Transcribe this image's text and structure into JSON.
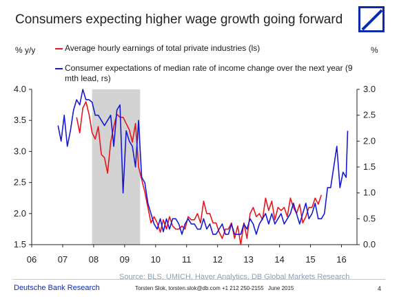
{
  "header": {
    "title": "Consumers expecting higher wage growth going forward"
  },
  "colors": {
    "earnings": "#e8141c",
    "expectations": "#1717d6",
    "recession_shade": "#d3d3d3",
    "brand": "#0a2bb0"
  },
  "chart_data": {
    "type": "line",
    "left_axis_label": "% y/y",
    "right_axis_label": "%",
    "x_ticks": [
      "06",
      "07",
      "08",
      "09",
      "10",
      "11",
      "12",
      "13",
      "14",
      "15",
      "16"
    ],
    "y_left_ticks": [
      "4.0",
      "3.5",
      "3.0",
      "2.5",
      "2.0",
      "1.5"
    ],
    "y_right_ticks": [
      "3.0",
      "2.5",
      "2.0",
      "1.5",
      "1.0",
      "0.5",
      "0.0"
    ],
    "y_left_range": [
      1.5,
      4.0
    ],
    "y_right_range": [
      0.0,
      3.0
    ],
    "x_range": [
      2006.0,
      2016.5
    ],
    "shaded_period": [
      2007.95,
      2009.5
    ],
    "grid": false,
    "legend_position": "top-left",
    "series": [
      {
        "name": "Average hourly earnings of total private industries (ls)",
        "axis": "left",
        "color_key": "earnings",
        "x": [
          2007.45,
          2007.55,
          2007.65,
          2007.75,
          2007.85,
          2007.95,
          2008.05,
          2008.15,
          2008.25,
          2008.35,
          2008.45,
          2008.55,
          2008.65,
          2008.75,
          2008.85,
          2008.95,
          2009.05,
          2009.15,
          2009.25,
          2009.35,
          2009.45,
          2009.55,
          2009.65,
          2009.75,
          2009.85,
          2009.95,
          2010.05,
          2010.15,
          2010.25,
          2010.35,
          2010.45,
          2010.55,
          2010.65,
          2010.75,
          2010.85,
          2010.95,
          2011.05,
          2011.15,
          2011.25,
          2011.35,
          2011.45,
          2011.55,
          2011.65,
          2011.75,
          2011.85,
          2011.95,
          2012.05,
          2012.15,
          2012.25,
          2012.35,
          2012.45,
          2012.55,
          2012.65,
          2012.75,
          2012.85,
          2012.95,
          2013.05,
          2013.15,
          2013.25,
          2013.35,
          2013.45,
          2013.55,
          2013.65,
          2013.75,
          2013.85,
          2013.95,
          2014.05,
          2014.15,
          2014.25,
          2014.35,
          2014.45,
          2014.55,
          2014.65,
          2014.75,
          2014.85,
          2014.95,
          2015.05,
          2015.15,
          2015.25,
          2015.35
        ],
        "values": [
          3.55,
          3.3,
          3.7,
          3.8,
          3.6,
          3.3,
          3.2,
          3.4,
          2.95,
          2.9,
          2.65,
          3.15,
          3.4,
          3.6,
          3.55,
          3.55,
          3.45,
          3.35,
          3.15,
          3.45,
          2.75,
          2.55,
          2.35,
          2.1,
          1.85,
          1.95,
          1.85,
          1.7,
          1.9,
          1.75,
          1.95,
          1.8,
          1.75,
          1.75,
          1.8,
          1.75,
          1.95,
          1.9,
          1.9,
          2.0,
          1.85,
          2.2,
          2.0,
          2.0,
          1.85,
          1.85,
          1.7,
          1.6,
          1.75,
          1.75,
          1.85,
          1.6,
          1.8,
          1.5,
          1.85,
          1.6,
          2.0,
          2.1,
          1.95,
          2.0,
          1.9,
          2.25,
          2.05,
          2.2,
          1.9,
          2.1,
          2.05,
          2.1,
          1.95,
          2.25,
          2.1,
          2.0,
          2.15,
          1.85,
          1.95,
          2.1,
          2.1,
          2.25,
          2.15,
          2.3
        ]
      },
      {
        "name": "Consumer expectations of median rate of income change over the next year (9 mth lead, rs)",
        "axis": "right",
        "color_key": "expectations",
        "x": [
          2006.85,
          2006.95,
          2007.05,
          2007.15,
          2007.25,
          2007.35,
          2007.45,
          2007.55,
          2007.65,
          2007.75,
          2007.85,
          2007.95,
          2008.05,
          2008.15,
          2008.25,
          2008.35,
          2008.45,
          2008.55,
          2008.65,
          2008.75,
          2008.85,
          2008.95,
          2009.05,
          2009.15,
          2009.25,
          2009.35,
          2009.45,
          2009.55,
          2009.65,
          2009.75,
          2009.85,
          2009.95,
          2010.05,
          2010.15,
          2010.25,
          2010.35,
          2010.45,
          2010.55,
          2010.65,
          2010.75,
          2010.85,
          2010.95,
          2011.05,
          2011.15,
          2011.25,
          2011.35,
          2011.45,
          2011.55,
          2011.65,
          2011.75,
          2011.85,
          2011.95,
          2012.05,
          2012.15,
          2012.25,
          2012.35,
          2012.45,
          2012.55,
          2012.65,
          2012.75,
          2012.85,
          2012.95,
          2013.05,
          2013.15,
          2013.25,
          2013.35,
          2013.45,
          2013.55,
          2013.65,
          2013.75,
          2013.85,
          2013.95,
          2014.05,
          2014.15,
          2014.25,
          2014.35,
          2014.45,
          2014.55,
          2014.65,
          2014.75,
          2014.85,
          2014.95,
          2015.05,
          2015.15,
          2015.25,
          2015.35,
          2015.45,
          2015.55,
          2015.65,
          2015.75,
          2015.85,
          2015.95,
          2016.05,
          2016.15,
          2016.2
        ],
        "values": [
          2.3,
          2.0,
          2.5,
          1.9,
          2.2,
          2.6,
          2.8,
          2.7,
          3.0,
          2.8,
          2.8,
          2.75,
          2.5,
          2.5,
          2.4,
          2.3,
          2.4,
          2.5,
          1.9,
          2.6,
          2.7,
          1.0,
          2.2,
          2.0,
          1.9,
          1.5,
          2.4,
          1.3,
          1.2,
          0.8,
          0.6,
          0.4,
          0.3,
          0.5,
          0.25,
          0.5,
          0.3,
          0.5,
          0.5,
          0.4,
          0.2,
          0.4,
          0.5,
          0.4,
          0.4,
          0.3,
          0.3,
          0.5,
          0.3,
          0.4,
          0.2,
          0.2,
          0.3,
          0.4,
          0.2,
          0.2,
          0.4,
          0.2,
          0.2,
          0.2,
          0.4,
          0.3,
          0.5,
          0.4,
          0.2,
          0.4,
          0.5,
          0.6,
          0.4,
          0.6,
          0.4,
          0.5,
          0.6,
          0.4,
          0.5,
          0.6,
          0.8,
          0.6,
          0.4,
          0.6,
          0.8,
          0.5,
          0.6,
          0.8,
          0.5,
          0.5,
          0.6,
          1.1,
          1.1,
          1.5,
          1.9,
          1.1,
          1.4,
          1.3,
          2.2
        ]
      }
    ]
  },
  "source_text": "Source: BLS, UMICH, Haver Analytics, DB Global Markets Research",
  "footer": {
    "org": "Deutsche Bank Research",
    "author": "Torsten Slok, torsten.slok@db.com +1 212 250-2155",
    "date": "June 2015",
    "page": "4"
  }
}
